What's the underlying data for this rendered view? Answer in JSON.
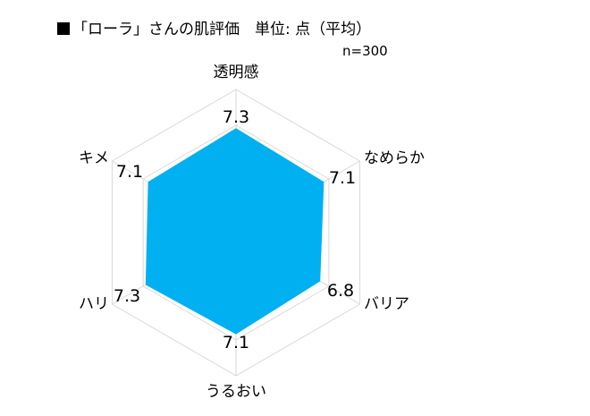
{
  "header": {
    "title": "「ローラ」さんの肌評価　単位: 点（平均）",
    "note": "n=300"
  },
  "chart_data": {
    "type": "radar",
    "title": "「ローラ」さんの肌評価　単位: 点（平均）",
    "note": "n=300",
    "categories": [
      "透明感",
      "なめらか",
      "バリア",
      "うるおい",
      "ハリ",
      "キメ"
    ],
    "series": [
      {
        "values": [
          7.3,
          7.1,
          6.8,
          7.1,
          7.3,
          7.1
        ]
      }
    ],
    "value_labels": [
      "7.3",
      "7.1",
      "6.8",
      "7.1",
      "7.3",
      "7.1"
    ],
    "rlim": [
      0,
      10
    ],
    "grid_rings": 4,
    "fill_color": "#00b0f0",
    "grid_color": "#d9d9d9",
    "legend": "none"
  }
}
